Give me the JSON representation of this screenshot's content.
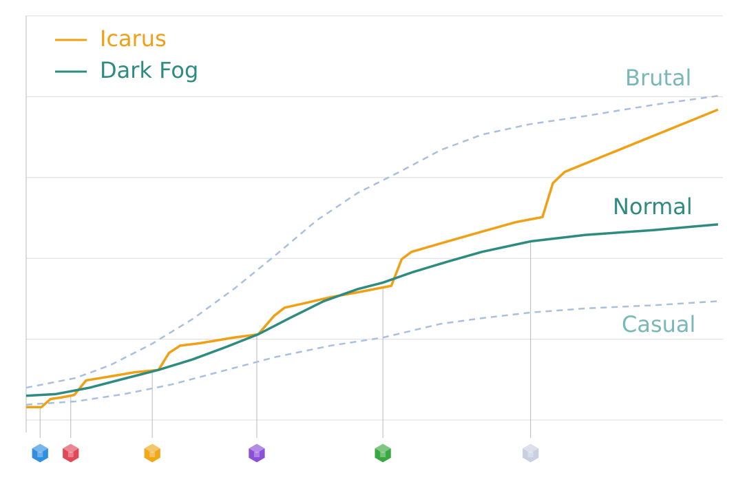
{
  "chart_data": {
    "type": "line",
    "xlim": [
      0,
      100
    ],
    "ylim": [
      0,
      5
    ],
    "yticks": [
      0,
      1,
      2,
      3,
      4,
      5
    ],
    "grid": true,
    "legend": "top-left",
    "series": [
      {
        "name": "Icarus",
        "color": "#f0a014",
        "x": [
          0,
          2.2,
          3.5,
          5.1,
          6.9,
          8.6,
          12.1,
          15.5,
          19.0,
          20.5,
          22.1,
          24.9,
          29.8,
          33.3,
          35.6,
          37.1,
          40.2,
          43.7,
          47.6,
          52.4,
          53.9,
          55.3,
          60.5,
          65.4,
          70.4,
          74.1,
          75.6,
          77.3,
          99.3
        ],
        "values": [
          0.16,
          0.16,
          0.26,
          0.28,
          0.31,
          0.49,
          0.54,
          0.59,
          0.62,
          0.83,
          0.92,
          0.95,
          1.02,
          1.06,
          1.29,
          1.39,
          1.45,
          1.52,
          1.58,
          1.66,
          1.99,
          2.08,
          2.21,
          2.33,
          2.45,
          2.51,
          2.93,
          3.07,
          3.84
        ]
      },
      {
        "name": "Dark Fog",
        "color": "#2e8b80",
        "x": [
          0,
          4.2,
          9.1,
          14.0,
          19.0,
          23.9,
          28.9,
          33.3,
          37.8,
          42.7,
          47.6,
          51.2,
          55.5,
          60.5,
          65.4,
          72.4,
          80.3,
          90.1,
          99.3
        ],
        "values": [
          0.3,
          0.32,
          0.4,
          0.51,
          0.62,
          0.75,
          0.91,
          1.06,
          1.26,
          1.47,
          1.62,
          1.7,
          1.83,
          1.96,
          2.08,
          2.21,
          2.29,
          2.35,
          2.42
        ]
      }
    ],
    "reference_curves": [
      {
        "name": "Brutal",
        "color": "#a8c0e0",
        "x": [
          0,
          7.1,
          12.1,
          18.0,
          23.9,
          29.8,
          35.8,
          41.7,
          47.6,
          53.6,
          59.5,
          65.4,
          72.3,
          80.2,
          90.1,
          99.3
        ],
        "values": [
          0.4,
          0.52,
          0.68,
          0.94,
          1.25,
          1.62,
          2.04,
          2.47,
          2.81,
          3.07,
          3.34,
          3.53,
          3.66,
          3.76,
          3.9,
          4.01
        ]
      },
      {
        "name": "Casual",
        "color": "#a8c0e0",
        "x": [
          0,
          7.1,
          14.0,
          20.9,
          27.9,
          35.8,
          43.7,
          51.2,
          59.5,
          65.4,
          72.4,
          80.2,
          90.1,
          99.3
        ],
        "values": [
          0.19,
          0.23,
          0.32,
          0.44,
          0.6,
          0.78,
          0.92,
          1.02,
          1.19,
          1.26,
          1.33,
          1.38,
          1.42,
          1.47
        ]
      }
    ],
    "annotation": "Normal",
    "markers": [
      {
        "x": 2.0,
        "color": "#2f8fe0"
      },
      {
        "x": 6.4,
        "color": "#e04858"
      },
      {
        "x": 18.1,
        "color": "#f0a818"
      },
      {
        "x": 33.1,
        "color": "#8a50d8"
      },
      {
        "x": 51.2,
        "color": "#3aa840"
      },
      {
        "x": 72.4,
        "color": "#c8d0e0"
      }
    ]
  }
}
